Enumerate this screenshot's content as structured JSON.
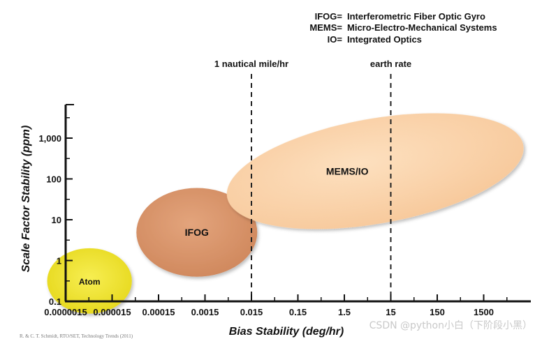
{
  "chart_data": {
    "type": "scatter",
    "title": "",
    "xlabel": "Bias Stability (deg/hr)",
    "ylabel": "Scale Factor Stability (ppm)",
    "x_scale": "log",
    "y_scale": "log",
    "x_ticks": [
      "0.0000015",
      "0.000015",
      "0.00015",
      "0.0015",
      "0.015",
      "0.15",
      "1.5",
      "15",
      "150",
      "1500"
    ],
    "x_tick_values": [
      1.5e-06,
      1.5e-05,
      0.00015,
      0.0015,
      0.015,
      0.15,
      1.5,
      15,
      150,
      1500
    ],
    "y_ticks": [
      "0.1",
      "1",
      "10",
      "100",
      "1,000"
    ],
    "y_tick_values": [
      0.1,
      1,
      10,
      100,
      1000
    ],
    "xlim": [
      1.5e-06,
      6000
    ],
    "ylim": [
      0.1,
      5000
    ],
    "regions": [
      {
        "label": "Atom",
        "x_range": [
          6e-07,
          4e-05
        ],
        "y_range": [
          0.05,
          2.0
        ],
        "color": "#efe32a"
      },
      {
        "label": "IFOG",
        "x_range": [
          5e-05,
          0.02
        ],
        "y_range": [
          0.4,
          60
        ],
        "color": "#d9936a"
      },
      {
        "label": "MEMS/IO",
        "x_range": [
          0.004,
          12000
        ],
        "y_range": [
          8,
          3000
        ],
        "color": "#fbd4ab"
      }
    ],
    "reference_lines": [
      {
        "label": "1 nautical mile/hr",
        "x": 0.015
      },
      {
        "label": "earth rate",
        "x": 15
      }
    ],
    "legend": [
      {
        "abbr": "IFOG=",
        "text": "Interferometric Fiber Optic Gyro"
      },
      {
        "abbr": "MEMS=",
        "text": "Micro-Electro-Mechanical Systems"
      },
      {
        "abbr": "IO=",
        "text": "Integrated Optics"
      }
    ],
    "legend_position": "top-right",
    "grid": false
  },
  "source_note": "R. & C. T. Schmidt, RTO/SET, Technology Trends (2011)",
  "watermark": "CSDN @python小白（下阶段小黑）"
}
